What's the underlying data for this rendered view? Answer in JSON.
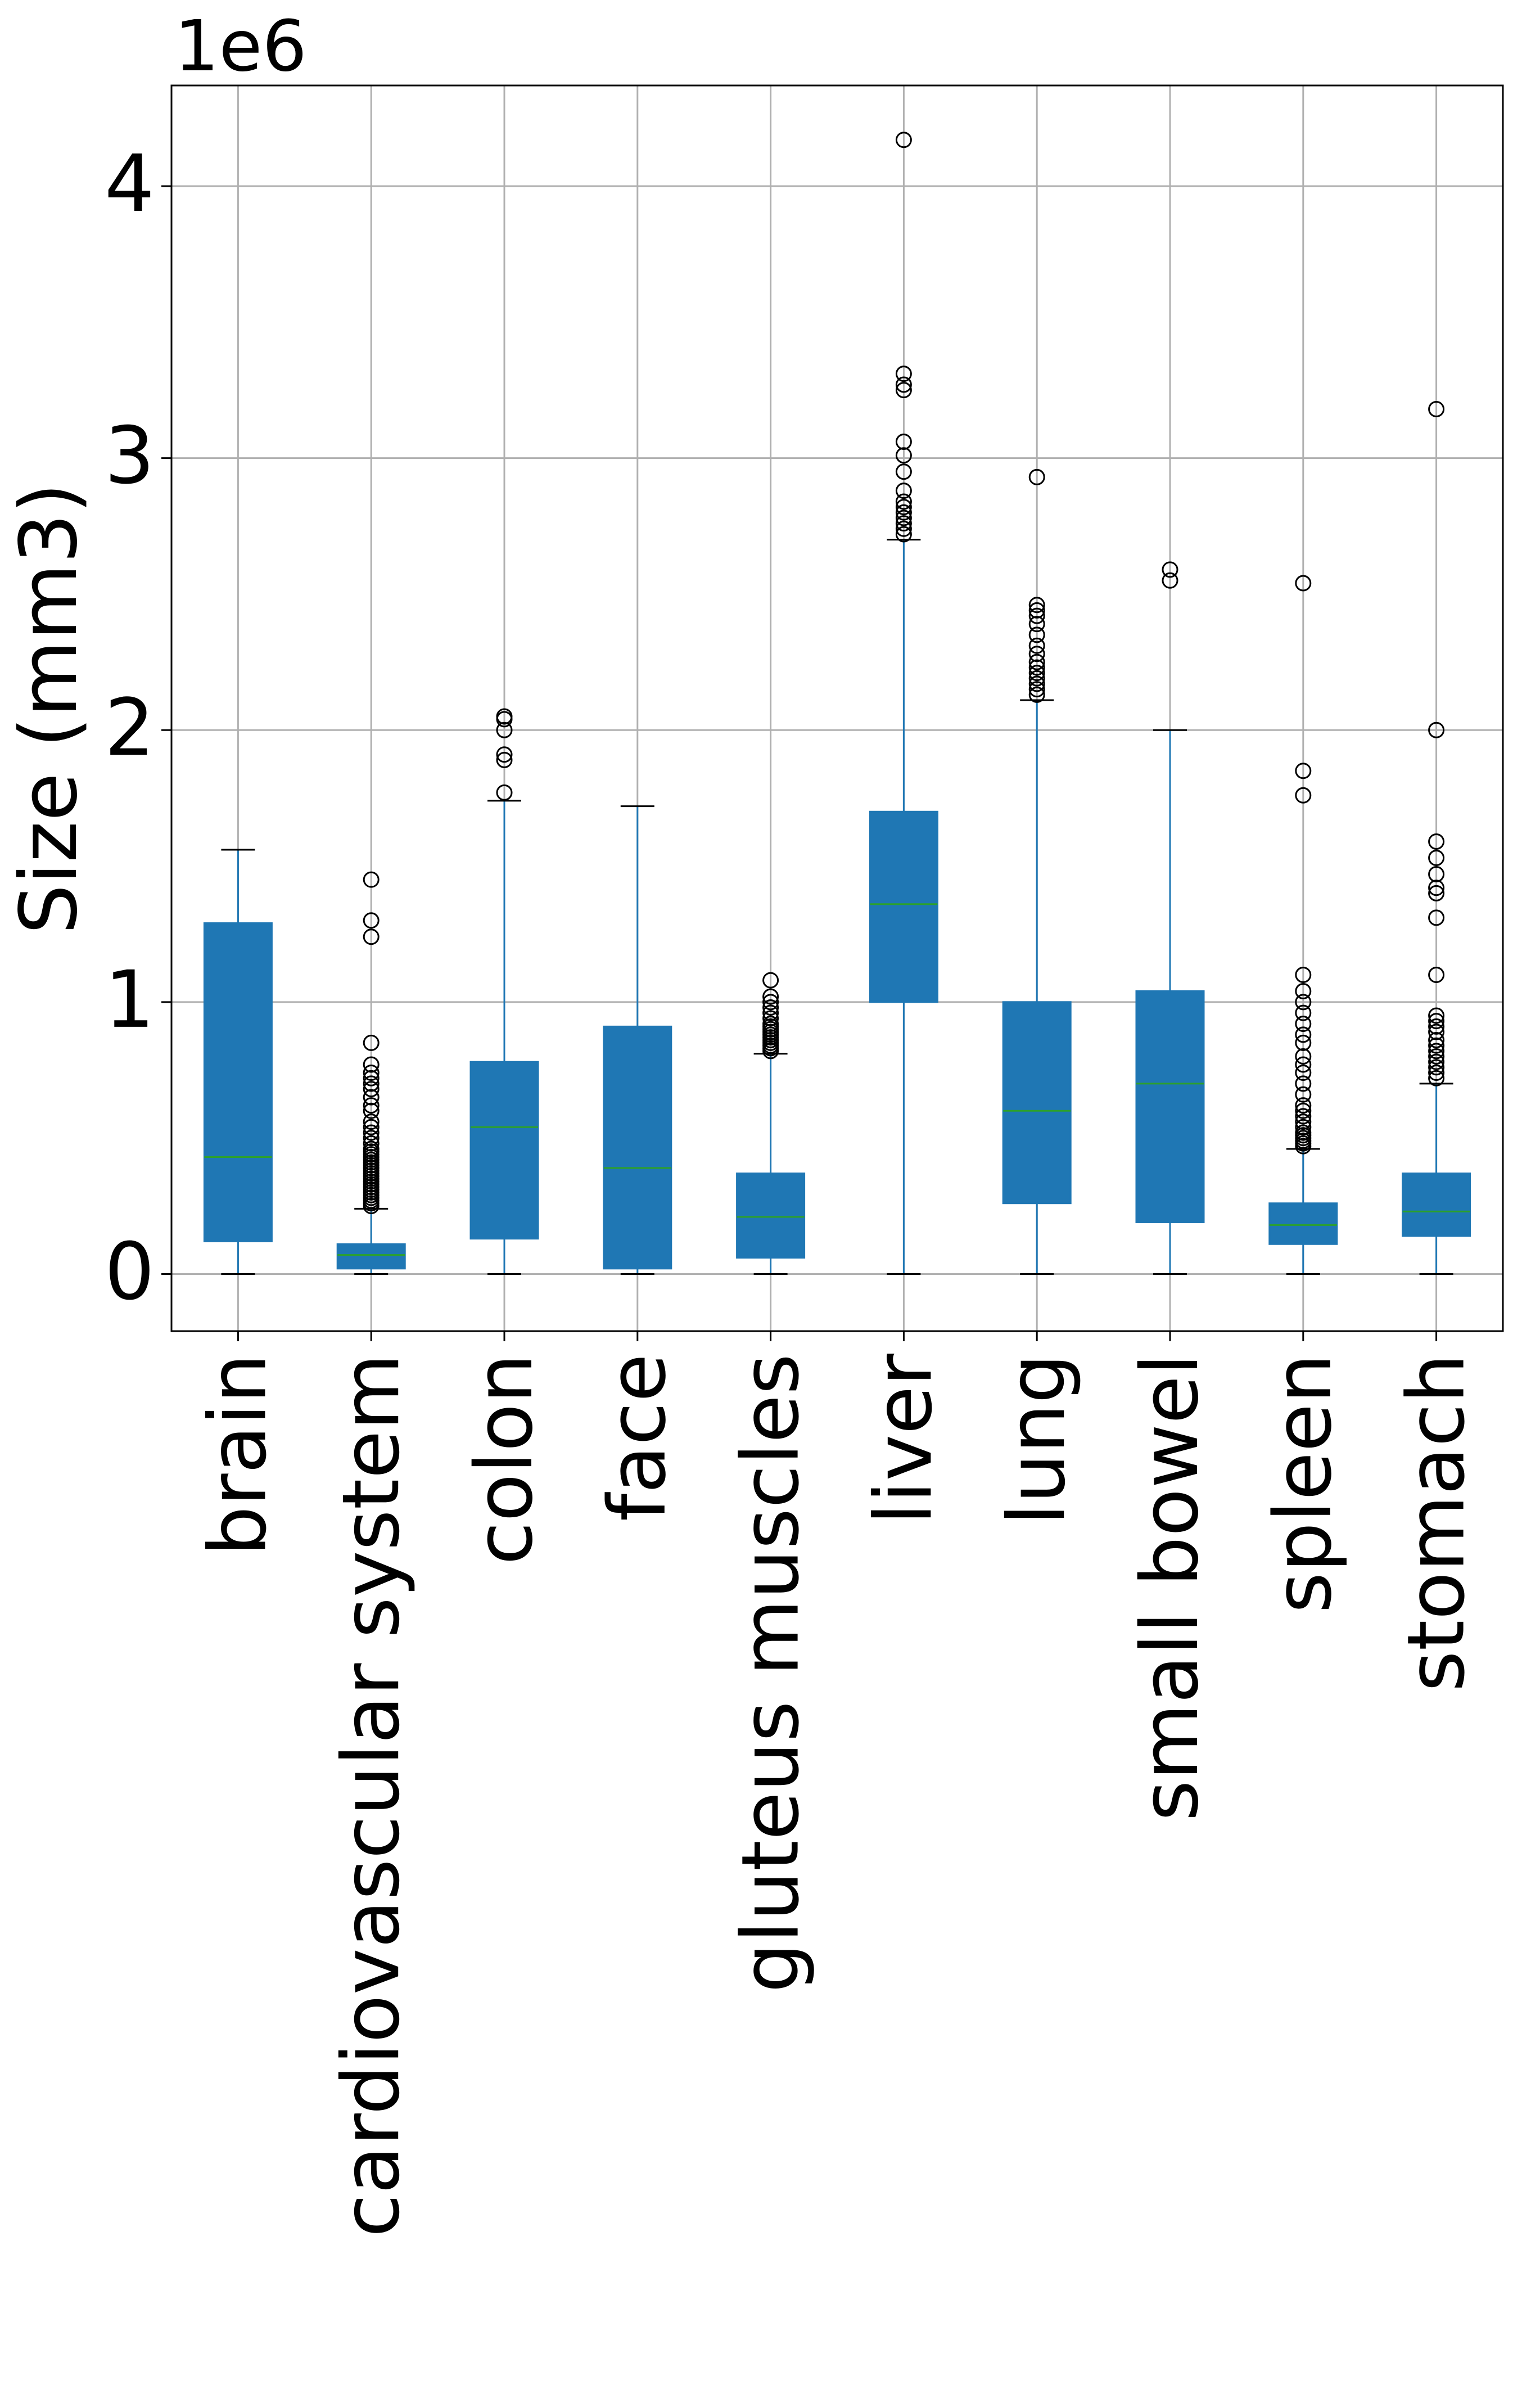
{
  "chart_data": {
    "type": "boxplot",
    "title": "",
    "xlabel": "",
    "ylabel": "Size (mm3)",
    "offset_label": "1e6",
    "ylim": [
      -210000,
      4370000
    ],
    "yticks": [
      0,
      1,
      2,
      3,
      4
    ],
    "grid": true,
    "colors": {
      "box_fill": "#1f77b4",
      "whisker": "#1f77b4",
      "median": "#2ca02c",
      "cap": "#000000",
      "outlier_edge": "#000000",
      "grid": "#b0b0b0"
    },
    "categories": [
      "brain",
      "cardiovascular system",
      "colon",
      "face",
      "gluteus muscles",
      "liver",
      "lung",
      "small bowel",
      "spleen",
      "stomach"
    ],
    "boxes": [
      {
        "name": "brain",
        "whislo": 0,
        "q1": 120000,
        "med": 430000,
        "q3": 1290000,
        "whishi": 1560000,
        "fliers": []
      },
      {
        "name": "cardiovascular system",
        "whislo": 0,
        "q1": 20000,
        "med": 70000,
        "q3": 110000,
        "whishi": 240000,
        "fliers": [
          250000,
          260000,
          270000,
          280000,
          290000,
          300000,
          310000,
          320000,
          330000,
          340000,
          350000,
          360000,
          370000,
          380000,
          390000,
          400000,
          410000,
          420000,
          430000,
          440000,
          450000,
          460000,
          480000,
          500000,
          520000,
          540000,
          560000,
          600000,
          620000,
          650000,
          680000,
          700000,
          720000,
          740000,
          770000,
          850000,
          1240000,
          1300000,
          1450000
        ]
      },
      {
        "name": "colon",
        "whislo": 0,
        "q1": 130000,
        "med": 540000,
        "q3": 780000,
        "whishi": 1740000,
        "fliers": [
          1770000,
          1890000,
          1910000,
          2000000,
          2040000,
          2050000
        ]
      },
      {
        "name": "face",
        "whislo": 0,
        "q1": 20000,
        "med": 390000,
        "q3": 910000,
        "whishi": 1720000,
        "fliers": []
      },
      {
        "name": "gluteus muscles",
        "whislo": 0,
        "q1": 60000,
        "med": 210000,
        "q3": 370000,
        "whishi": 810000,
        "fliers": [
          820000,
          830000,
          840000,
          850000,
          860000,
          870000,
          880000,
          890000,
          900000,
          910000,
          920000,
          940000,
          960000,
          980000,
          1000000,
          1020000,
          1080000
        ]
      },
      {
        "name": "liver",
        "whislo": 0,
        "q1": 1000000,
        "med": 1360000,
        "q3": 1700000,
        "whishi": 2700000,
        "fliers": [
          2720000,
          2740000,
          2760000,
          2780000,
          2800000,
          2820000,
          2840000,
          2880000,
          2950000,
          3010000,
          3060000,
          3250000,
          3270000,
          3310000,
          4170000
        ]
      },
      {
        "name": "lung",
        "whislo": 0,
        "q1": 260000,
        "med": 600000,
        "q3": 1000000,
        "whishi": 2110000,
        "fliers": [
          2130000,
          2150000,
          2170000,
          2190000,
          2210000,
          2230000,
          2250000,
          2280000,
          2310000,
          2350000,
          2390000,
          2420000,
          2440000,
          2460000,
          2930000
        ]
      },
      {
        "name": "small bowel",
        "whislo": 0,
        "q1": 190000,
        "med": 700000,
        "q3": 1040000,
        "whishi": 2000000,
        "fliers": [
          2550000,
          2590000
        ]
      },
      {
        "name": "spleen",
        "whislo": 0,
        "q1": 110000,
        "med": 180000,
        "q3": 260000,
        "whishi": 460000,
        "fliers": [
          470000,
          480000,
          490000,
          500000,
          510000,
          520000,
          540000,
          560000,
          580000,
          600000,
          620000,
          660000,
          700000,
          740000,
          770000,
          800000,
          850000,
          880000,
          920000,
          960000,
          1000000,
          1040000,
          1100000,
          1760000,
          1850000,
          2540000
        ]
      },
      {
        "name": "stomach",
        "whislo": 0,
        "q1": 140000,
        "med": 230000,
        "q3": 370000,
        "whishi": 700000,
        "fliers": [
          720000,
          740000,
          760000,
          780000,
          800000,
          820000,
          840000,
          860000,
          890000,
          910000,
          930000,
          950000,
          1100000,
          1310000,
          1400000,
          1420000,
          1470000,
          1530000,
          1590000,
          2000000,
          3180000
        ]
      }
    ]
  }
}
